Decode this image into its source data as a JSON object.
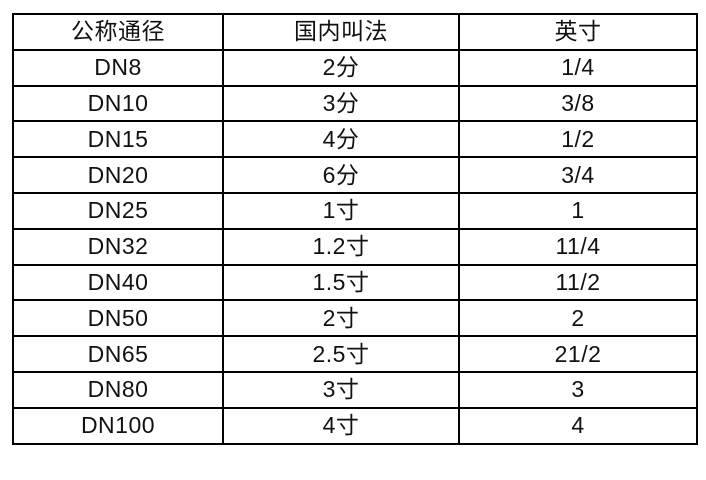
{
  "table": {
    "title": "pipe-diameter-conversion-table",
    "columns": [
      "公称通径",
      "国内叫法",
      "英寸"
    ],
    "rows": [
      [
        "DN8",
        "2分",
        "1/4"
      ],
      [
        "DN10",
        "3分",
        "3/8"
      ],
      [
        "DN15",
        "4分",
        "1/2"
      ],
      [
        "DN20",
        "6分",
        "3/4"
      ],
      [
        "DN25",
        "1寸",
        "1"
      ],
      [
        "DN32",
        "1.2寸",
        "11/4"
      ],
      [
        "DN40",
        "1.5寸",
        "11/2"
      ],
      [
        "DN50",
        "2寸",
        "2"
      ],
      [
        "DN65",
        "2.5寸",
        "21/2"
      ],
      [
        "DN80",
        "3寸",
        "3"
      ],
      [
        "DN100",
        "4寸",
        "4"
      ]
    ],
    "colors": {
      "border": "#000000",
      "text": "#111111",
      "background": "#ffffff"
    }
  }
}
